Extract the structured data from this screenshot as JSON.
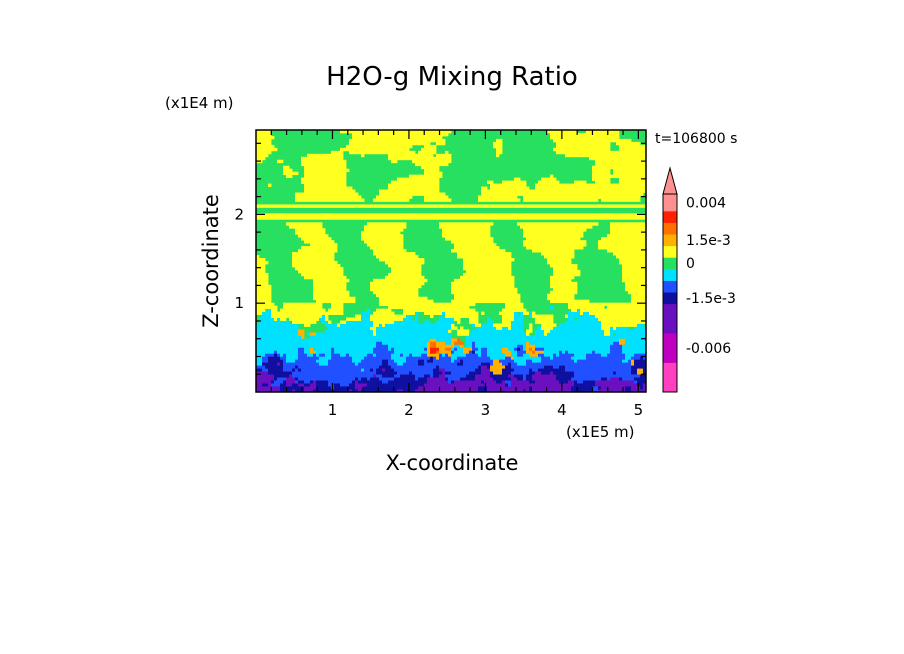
{
  "chart_data": {
    "type": "heatmap",
    "title": "H2O-g Mixing Ratio",
    "xlabel": "X-coordinate",
    "ylabel": "Z-coordinate",
    "x_unit_label": "(x1E5 m)",
    "y_unit_label": "(x1E4 m)",
    "time_label": "t=106800 s",
    "xlim": [
      0.0,
      5.1
    ],
    "ylim": [
      0.0,
      2.95
    ],
    "x_ticks": [
      {
        "value": 1,
        "label": "1"
      },
      {
        "value": 2,
        "label": "2"
      },
      {
        "value": 3,
        "label": "3"
      },
      {
        "value": 4,
        "label": "4"
      },
      {
        "value": 5,
        "label": "5"
      }
    ],
    "y_ticks": [
      {
        "value": 1,
        "label": "1"
      },
      {
        "value": 2,
        "label": "2"
      }
    ],
    "colorbar": {
      "levels": [
        {
          "color": "#ff40c0",
          "label": ""
        },
        {
          "color": "#c000c0",
          "label": "-0.006"
        },
        {
          "color": "#6a10c0",
          "label": ""
        },
        {
          "color": "#1010a0",
          "label": "-1.5e-3"
        },
        {
          "color": "#2050ff",
          "label": ""
        },
        {
          "color": "#00e0ff",
          "label": ""
        },
        {
          "color": "#28e060",
          "label": "0"
        },
        {
          "color": "#ffff20",
          "label": ""
        },
        {
          "color": "#ffb000",
          "label": "1.5e-3"
        },
        {
          "color": "#ff7000",
          "label": ""
        },
        {
          "color": "#ff2000",
          "label": ""
        },
        {
          "color": "#ff9090",
          "label": "0.004"
        }
      ],
      "extend": "max"
    }
  }
}
